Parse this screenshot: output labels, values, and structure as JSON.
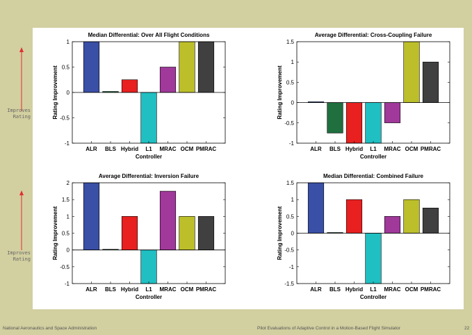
{
  "side_labels": [
    {
      "line1": "Improves",
      "line2": "Rating"
    },
    {
      "line1": "Improves",
      "line2": "Rating"
    }
  ],
  "footer": {
    "left": "National Aeronautics and Space Administration",
    "center": "Pilot Evaluations of Adaptive Control in a Motion-Based Flight Simulator",
    "page": "22"
  },
  "colors": {
    "ALR": "#3a4fa6",
    "BLS": "#1f6f3f",
    "Hybrid": "#e82020",
    "L1": "#1fbfc2",
    "MRAC": "#a0399a",
    "OCM": "#bcbf2a",
    "PMRAC": "#404040",
    "background": "#d2cfa0",
    "arrow": "#e03030"
  },
  "chart_data": [
    {
      "type": "bar",
      "title": "Median Differential: Over All Flight Conditions",
      "xlabel": "Controller",
      "ylabel": "Rating Improvement",
      "categories": [
        "ALR",
        "BLS",
        "Hybrid",
        "L1",
        "MRAC",
        "OCM",
        "PMRAC"
      ],
      "values": [
        1,
        0.02,
        0.25,
        -1,
        0.5,
        1,
        1
      ],
      "ylim": [
        -1,
        1
      ],
      "yticks": [
        "-1",
        "-0.5",
        "0",
        "0.5",
        "1"
      ]
    },
    {
      "type": "bar",
      "title": "Average Differential: Cross-Coupling Failure",
      "xlabel": "Controller",
      "ylabel": "Rating Improvement",
      "categories": [
        "ALR",
        "BLS",
        "Hybrid",
        "L1",
        "MRAC",
        "OCM",
        "PMRAC"
      ],
      "values": [
        0.02,
        -0.75,
        -1,
        -1,
        -0.5,
        1.5,
        1
      ],
      "ylim": [
        -1,
        1.5
      ],
      "yticks": [
        "-1",
        "-0.5",
        "0",
        "0.5",
        "1",
        "1.5"
      ]
    },
    {
      "type": "bar",
      "title": "Average Differential: Inversion Failure",
      "xlabel": "Controller",
      "ylabel": "Rating Improvement",
      "categories": [
        "ALR",
        "BLS",
        "Hybrid",
        "L1",
        "MRAC",
        "OCM",
        "PMRAC"
      ],
      "values": [
        2,
        0.02,
        1,
        -1,
        1.75,
        1,
        1
      ],
      "ylim": [
        -1,
        2
      ],
      "yticks": [
        "-1",
        "-0.5",
        "0",
        "0.5",
        "1",
        "1.5",
        "2"
      ]
    },
    {
      "type": "bar",
      "title": "Median Differential: Combined Failure",
      "xlabel": "Controller",
      "ylabel": "Rating Improvement",
      "categories": [
        "ALR",
        "BLS",
        "Hybrid",
        "L1",
        "MRAC",
        "OCM",
        "PMRAC"
      ],
      "values": [
        1.5,
        0.02,
        1,
        -1.5,
        0.5,
        1,
        0.75
      ],
      "ylim": [
        -1.5,
        1.5
      ],
      "yticks": [
        "-1.5",
        "-1",
        "-0.5",
        "0",
        "0.5",
        "1",
        "1.5"
      ]
    }
  ]
}
